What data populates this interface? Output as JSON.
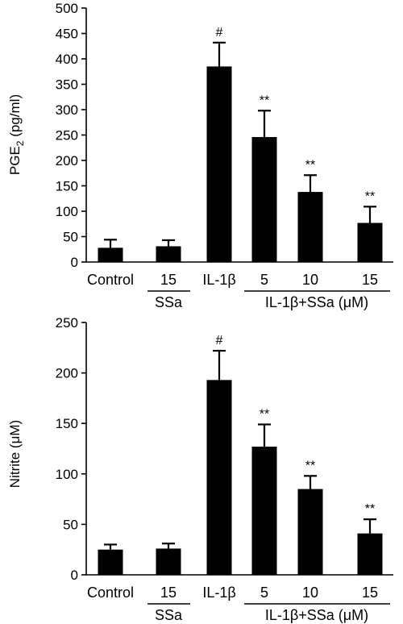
{
  "chart_data": [
    {
      "type": "bar",
      "ylabel": "PGE",
      "ylabel_sub": "2",
      "ylabel_unit": " (pg/ml)",
      "ylim": [
        0,
        500
      ],
      "yticks": [
        0,
        50,
        100,
        150,
        200,
        250,
        300,
        350,
        400,
        450,
        500
      ],
      "categories": [
        "Control",
        "15",
        "IL-1β",
        "5",
        "10",
        "15"
      ],
      "values": [
        28,
        31,
        385,
        246,
        138,
        77
      ],
      "errors": [
        16,
        12,
        47,
        52,
        33,
        32
      ],
      "annotations": [
        "",
        "",
        "#",
        "**",
        "**",
        "**"
      ],
      "group_labels": [
        "SSa",
        "IL-1β+SSa (μM)"
      ],
      "color": "#000000"
    },
    {
      "type": "bar",
      "ylabel": "Nitrite (μM)",
      "ylim": [
        0,
        250
      ],
      "yticks": [
        0,
        50,
        100,
        150,
        200,
        250
      ],
      "categories": [
        "Control",
        "15",
        "IL-1β",
        "5",
        "10",
        "15"
      ],
      "values": [
        25,
        26,
        193,
        127,
        85,
        41
      ],
      "errors": [
        5,
        5,
        29,
        22,
        13,
        14
      ],
      "annotations": [
        "",
        "",
        "#",
        "**",
        "**",
        "**"
      ],
      "group_labels": [
        "SSa",
        "IL-1β+SSa (μM)"
      ],
      "color": "#000000"
    }
  ]
}
